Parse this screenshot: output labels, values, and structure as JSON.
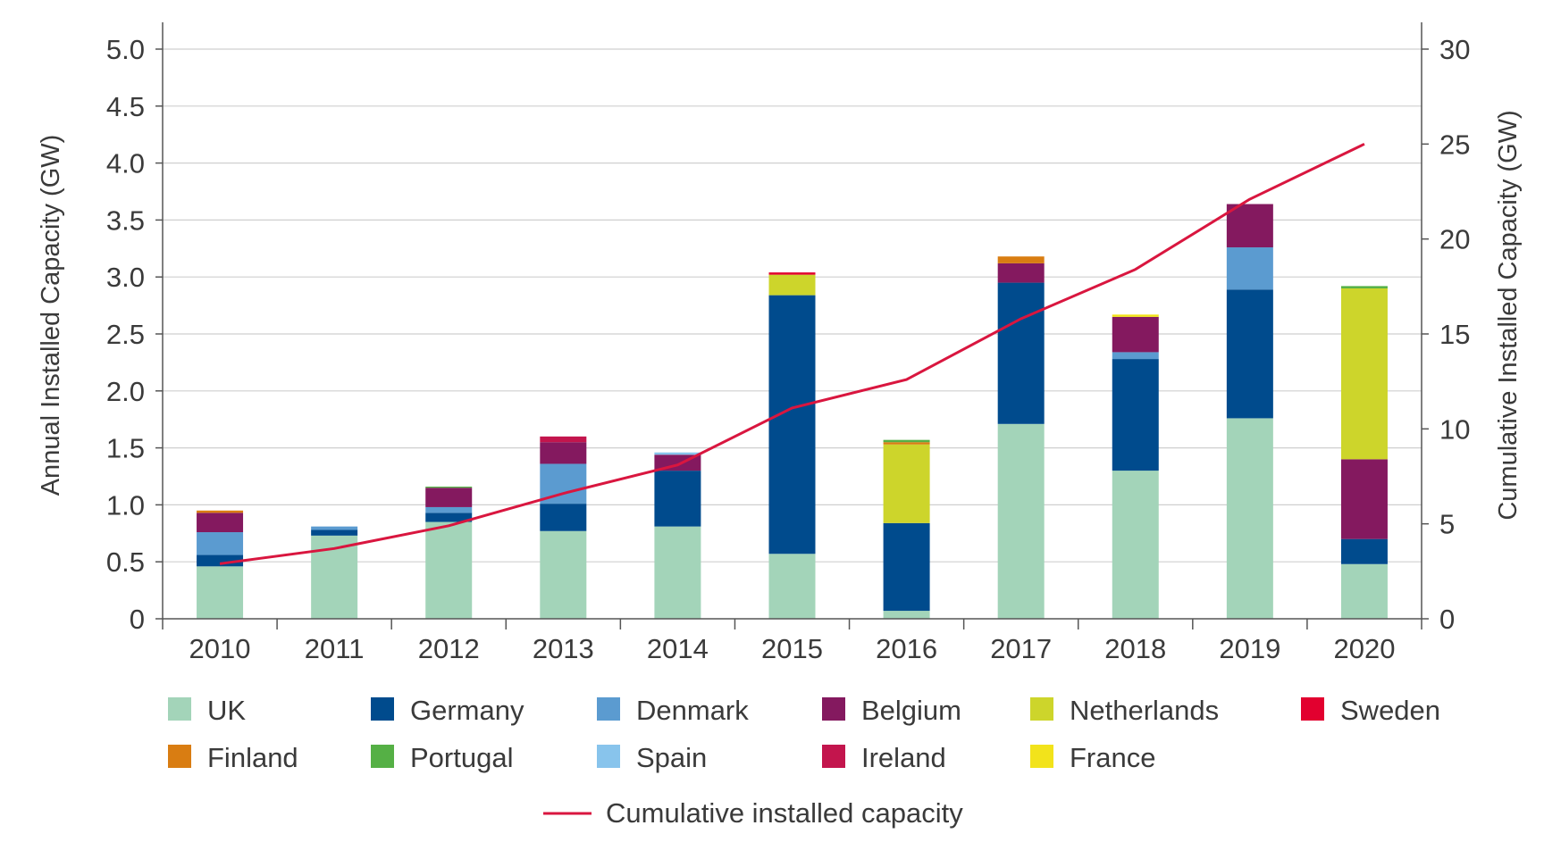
{
  "chart_data": {
    "type": "bar",
    "stacked": true,
    "categories": [
      "2010",
      "2011",
      "2012",
      "2013",
      "2014",
      "2015",
      "2016",
      "2017",
      "2018",
      "2019",
      "2020"
    ],
    "ylabel": "Annual Installed Capacity (GW)",
    "ylabel_right": "Cumulative Installed Capacity (GW)",
    "ylim": [
      0,
      5.0
    ],
    "ylim_right": [
      0,
      30
    ],
    "yticks": [
      "0",
      "0.5",
      "1.0",
      "1.5",
      "2.0",
      "2.5",
      "3.0",
      "3.5",
      "4.0",
      "4.5",
      "5.0"
    ],
    "yticks_right": [
      "0",
      "5",
      "10",
      "15",
      "20",
      "25",
      "30"
    ],
    "grid": true,
    "legend_position": "bottom",
    "series": [
      {
        "name": "UK",
        "color": "#a3d4b9",
        "values": [
          0.46,
          0.73,
          0.85,
          0.77,
          0.81,
          0.57,
          0.07,
          1.71,
          1.3,
          1.76,
          0.48
        ]
      },
      {
        "name": "Germany",
        "color": "#004b8d",
        "values": [
          0.1,
          0.05,
          0.08,
          0.24,
          0.49,
          2.27,
          0.77,
          1.24,
          0.98,
          1.13,
          0.22
        ]
      },
      {
        "name": "Denmark",
        "color": "#5b9bd0",
        "values": [
          0.2,
          0.03,
          0.05,
          0.35,
          0.0,
          0.0,
          0.0,
          0.0,
          0.06,
          0.37,
          0.0
        ]
      },
      {
        "name": "Belgium",
        "color": "#84195f",
        "values": [
          0.17,
          0.0,
          0.17,
          0.19,
          0.14,
          0.0,
          0.0,
          0.17,
          0.31,
          0.38,
          0.7
        ]
      },
      {
        "name": "Netherlands",
        "color": "#cdd52b",
        "values": [
          0.0,
          0.0,
          0.0,
          0.0,
          0.0,
          0.18,
          0.69,
          0.0,
          0.0,
          0.0,
          1.5
        ]
      },
      {
        "name": "Sweden",
        "color": "#e2002f",
        "values": [
          0.0,
          0.0,
          0.0,
          0.0,
          0.0,
          0.02,
          0.0,
          0.0,
          0.0,
          0.0,
          0.0
        ]
      },
      {
        "name": "Finland",
        "color": "#d97d12",
        "values": [
          0.02,
          0.0,
          0.0,
          0.0,
          0.0,
          0.0,
          0.02,
          0.06,
          0.0,
          0.0,
          0.0
        ]
      },
      {
        "name": "Portugal",
        "color": "#55b045",
        "values": [
          0.0,
          0.0,
          0.01,
          0.0,
          0.0,
          0.0,
          0.02,
          0.0,
          0.0,
          0.0,
          0.02
        ]
      },
      {
        "name": "Spain",
        "color": "#88c4ec",
        "values": [
          0.0,
          0.0,
          0.0,
          0.0,
          0.02,
          0.0,
          0.0,
          0.0,
          0.0,
          0.0,
          0.0
        ]
      },
      {
        "name": "Ireland",
        "color": "#c3154d",
        "values": [
          0.0,
          0.0,
          0.0,
          0.05,
          0.0,
          0.0,
          0.0,
          0.0,
          0.0,
          0.0,
          0.0
        ]
      },
      {
        "name": "France",
        "color": "#f2e31b",
        "values": [
          0.0,
          0.0,
          0.0,
          0.0,
          0.0,
          0.0,
          0.0,
          0.0,
          0.02,
          0.0,
          0.0
        ]
      }
    ],
    "line": {
      "name": "Cumulative installed capacity",
      "color": "#d9163f",
      "axis": "right",
      "values": [
        2.9,
        3.7,
        4.9,
        6.6,
        8.1,
        11.1,
        12.6,
        15.8,
        18.4,
        22.1,
        25.0
      ]
    }
  }
}
